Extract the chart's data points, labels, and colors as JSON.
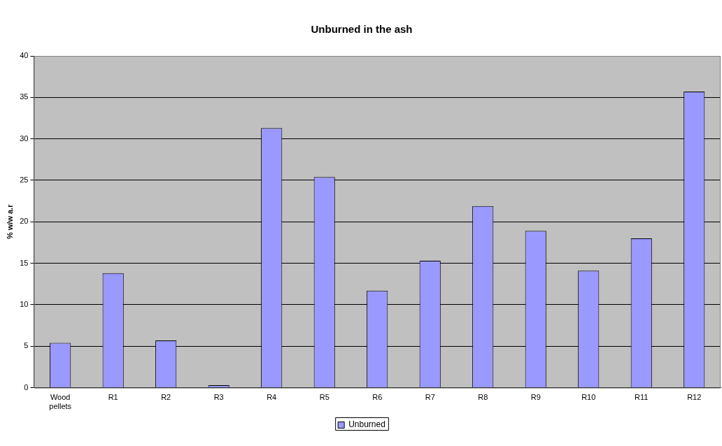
{
  "chart_data": {
    "type": "bar",
    "title": "Unburned in the ash",
    "ylabel": "% w/w a.r",
    "categories": [
      "Wood pellets",
      "R1",
      "R2",
      "R3",
      "R4",
      "R5",
      "R6",
      "R7",
      "R8",
      "R9",
      "R10",
      "R11",
      "R12"
    ],
    "series": [
      {
        "name": "Unburned",
        "color": "#9999ff",
        "values": [
          5.4,
          13.8,
          5.7,
          0.3,
          31.3,
          25.4,
          11.7,
          15.3,
          21.9,
          18.9,
          14.1,
          18.0,
          35.7
        ]
      }
    ],
    "ylim": [
      0,
      40
    ],
    "yticks": [
      0,
      5,
      10,
      15,
      20,
      25,
      30,
      35,
      40
    ],
    "grid": "y",
    "legend": "bottom"
  }
}
